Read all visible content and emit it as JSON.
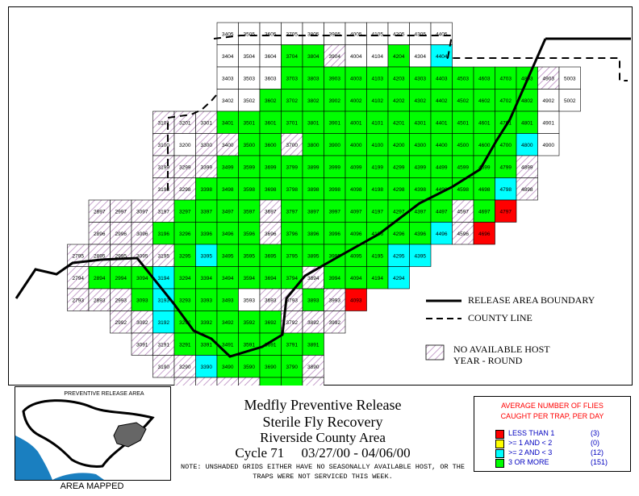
{
  "titles": {
    "line1": "Medfly Preventive Release",
    "line2": "Sterile Fly Recovery",
    "line3": "Riverside County Area",
    "line4": "Cycle 71     03/27/00 - 04/06/00"
  },
  "note": "NOTE: UNSHADED GRIDS EITHER HAVE NO SEASONALLY AVAILABLE HOST, OR THE TRAPS WERE NOT SERVICED THIS WEEK.",
  "inset": {
    "label": "PREVENTIVE RELEASE AREA",
    "caption": "AREA MAPPED"
  },
  "map_key": {
    "release_boundary": "RELEASE AREA BOUNDARY",
    "county_line": "COUNTY LINE",
    "no_host_line1": "NO AVAILABLE HOST",
    "no_host_line2": "YEAR - ROUND"
  },
  "legend": {
    "title_line1": "AVERAGE NUMBER OF FLIES",
    "title_line2": "CAUGHT PER TRAP, PER DAY",
    "items": [
      {
        "label": "LESS THAN 1",
        "count": "(3)",
        "color": "#ff0000"
      },
      {
        "label": ">= 1 AND < 2",
        "count": "(0)",
        "color": "#ffff00"
      },
      {
        "label": ">= 2 AND < 3",
        "count": "(12)",
        "color": "#00ffff"
      },
      {
        "label": "3 OR MORE",
        "count": "(151)",
        "color": "#00ff00"
      }
    ]
  },
  "colors": {
    "green": "#00ff00",
    "cyan": "#00ffff",
    "red": "#ff0000",
    "hatch": "#b98bc0"
  },
  "grid_rows": [
    {
      "id": "05",
      "cells": [
        [
          "3405",
          "w"
        ],
        [
          "3505",
          "w"
        ],
        [
          "3605",
          "w"
        ],
        [
          "3705",
          "w"
        ],
        [
          "3805",
          "w"
        ],
        [
          "3905",
          "w"
        ],
        [
          "4005",
          "w"
        ],
        [
          "4105",
          "w"
        ],
        [
          "4205",
          "w"
        ],
        [
          "4305",
          "w"
        ],
        [
          "4405",
          "w"
        ]
      ]
    },
    {
      "id": "04",
      "cells": [
        [
          "3404",
          "w"
        ],
        [
          "3504",
          "w"
        ],
        [
          "3604",
          "w"
        ],
        [
          "3704",
          "g"
        ],
        [
          "3804",
          "g"
        ],
        [
          "3904",
          "h"
        ],
        [
          "4004",
          "w"
        ],
        [
          "4104",
          "w"
        ],
        [
          "4204",
          "g"
        ],
        [
          "4304",
          "w"
        ],
        [
          "4404",
          "c"
        ]
      ]
    },
    {
      "id": "03",
      "cells": [
        [
          "3403",
          "w"
        ],
        [
          "3503",
          "w"
        ],
        [
          "3603",
          "w"
        ],
        [
          "3703",
          "g"
        ],
        [
          "3803",
          "g"
        ],
        [
          "3903",
          "g"
        ],
        [
          "4003",
          "g"
        ],
        [
          "4103",
          "g"
        ],
        [
          "4203",
          "g"
        ],
        [
          "4303",
          "g"
        ],
        [
          "4403",
          "g"
        ],
        [
          "4503",
          "g"
        ],
        [
          "4603",
          "g"
        ],
        [
          "4703",
          "g"
        ],
        [
          "4803",
          "g"
        ],
        [
          "4903",
          "h"
        ],
        [
          "5003",
          "w"
        ]
      ]
    },
    {
      "id": "02",
      "cells": [
        [
          "3402",
          "w"
        ],
        [
          "3502",
          "w"
        ],
        [
          "3602",
          "g"
        ],
        [
          "3702",
          "g"
        ],
        [
          "3802",
          "g"
        ],
        [
          "3902",
          "g"
        ],
        [
          "4002",
          "g"
        ],
        [
          "4102",
          "g"
        ],
        [
          "4202",
          "g"
        ],
        [
          "4302",
          "g"
        ],
        [
          "4402",
          "g"
        ],
        [
          "4502",
          "g"
        ],
        [
          "4602",
          "g"
        ],
        [
          "4702",
          "g"
        ],
        [
          "4802",
          "g"
        ],
        [
          "4902",
          "w"
        ],
        [
          "5002",
          "w"
        ]
      ]
    },
    {
      "id": "01",
      "cells": [
        [
          "3101",
          "h"
        ],
        [
          "3201",
          "h"
        ],
        [
          "3301",
          "h"
        ],
        [
          "3401",
          "g"
        ],
        [
          "3501",
          "g"
        ],
        [
          "3601",
          "g"
        ],
        [
          "3701",
          "g"
        ],
        [
          "3801",
          "g"
        ],
        [
          "3901",
          "g"
        ],
        [
          "4001",
          "g"
        ],
        [
          "4101",
          "g"
        ],
        [
          "4201",
          "g"
        ],
        [
          "4301",
          "g"
        ],
        [
          "4401",
          "g"
        ],
        [
          "4501",
          "g"
        ],
        [
          "4601",
          "g"
        ],
        [
          "4701",
          "g"
        ],
        [
          "4801",
          "g"
        ],
        [
          "4901",
          "w"
        ]
      ]
    },
    {
      "id": "00",
      "cells": [
        [
          "3100",
          "h"
        ],
        [
          "3200",
          "w"
        ],
        [
          "3300",
          "h"
        ],
        [
          "3400",
          "h"
        ],
        [
          "3500",
          "g"
        ],
        [
          "3600",
          "g"
        ],
        [
          "3700",
          "h"
        ],
        [
          "3800",
          "g"
        ],
        [
          "3900",
          "g"
        ],
        [
          "4000",
          "g"
        ],
        [
          "4100",
          "g"
        ],
        [
          "4200",
          "g"
        ],
        [
          "4300",
          "g"
        ],
        [
          "4400",
          "g"
        ],
        [
          "4500",
          "g"
        ],
        [
          "4600",
          "g"
        ],
        [
          "4700",
          "g"
        ],
        [
          "4800",
          "c"
        ],
        [
          "4900",
          "w"
        ]
      ]
    },
    {
      "id": "99",
      "cells": [
        [
          "3199",
          "h"
        ],
        [
          "3299",
          "h"
        ],
        [
          "3399",
          "h"
        ],
        [
          "3499",
          "g"
        ],
        [
          "3599",
          "g"
        ],
        [
          "3699",
          "g"
        ],
        [
          "3799",
          "g"
        ],
        [
          "3899",
          "g"
        ],
        [
          "3999",
          "g"
        ],
        [
          "4099",
          "g"
        ],
        [
          "4199",
          "g"
        ],
        [
          "4299",
          "g"
        ],
        [
          "4399",
          "g"
        ],
        [
          "4499",
          "g"
        ],
        [
          "4599",
          "g"
        ],
        [
          "4699",
          "g"
        ],
        [
          "4799",
          "g"
        ],
        [
          "4899",
          "h"
        ]
      ]
    },
    {
      "id": "98",
      "cells": [
        [
          "3198",
          "h"
        ],
        [
          "3298",
          "h"
        ],
        [
          "3398",
          "g"
        ],
        [
          "3498",
          "g"
        ],
        [
          "3598",
          "g"
        ],
        [
          "3698",
          "g"
        ],
        [
          "3798",
          "g"
        ],
        [
          "3898",
          "g"
        ],
        [
          "3998",
          "g"
        ],
        [
          "4098",
          "g"
        ],
        [
          "4198",
          "g"
        ],
        [
          "4298",
          "g"
        ],
        [
          "4398",
          "g"
        ],
        [
          "4498",
          "g"
        ],
        [
          "4598",
          "g"
        ],
        [
          "4698",
          "g"
        ],
        [
          "4798",
          "c"
        ],
        [
          "4898",
          "h"
        ]
      ]
    },
    {
      "id": "97",
      "cells": [
        [
          "2897",
          "h"
        ],
        [
          "2997",
          "h"
        ],
        [
          "3097",
          "h"
        ],
        [
          "3197",
          "h"
        ],
        [
          "3297",
          "g"
        ],
        [
          "3397",
          "g"
        ],
        [
          "3497",
          "g"
        ],
        [
          "3597",
          "g"
        ],
        [
          "3697",
          "h"
        ],
        [
          "3797",
          "g"
        ],
        [
          "3897",
          "g"
        ],
        [
          "3997",
          "g"
        ],
        [
          "4097",
          "g"
        ],
        [
          "4197",
          "g"
        ],
        [
          "4297",
          "g"
        ],
        [
          "4397",
          "g"
        ],
        [
          "4497",
          "g"
        ],
        [
          "4597",
          "h"
        ],
        [
          "4697",
          "g"
        ],
        [
          "4797",
          "r"
        ]
      ]
    },
    {
      "id": "96",
      "cells": [
        [
          "2896",
          "h"
        ],
        [
          "2996",
          "h"
        ],
        [
          "3096",
          "h"
        ],
        [
          "3196",
          "g"
        ],
        [
          "3296",
          "g"
        ],
        [
          "3396",
          "g"
        ],
        [
          "3496",
          "g"
        ],
        [
          "3596",
          "g"
        ],
        [
          "3696",
          "h"
        ],
        [
          "3796",
          "g"
        ],
        [
          "3896",
          "g"
        ],
        [
          "3996",
          "g"
        ],
        [
          "4096",
          "g"
        ],
        [
          "4196",
          "g"
        ],
        [
          "4296",
          "g"
        ],
        [
          "4396",
          "g"
        ],
        [
          "4496",
          "c"
        ],
        [
          "4596",
          "h"
        ],
        [
          "4696",
          "r"
        ]
      ]
    },
    {
      "id": "95",
      "cells": [
        [
          "2795",
          "h"
        ],
        [
          "2895",
          "h"
        ],
        [
          "2995",
          "h"
        ],
        [
          "3095",
          "h"
        ],
        [
          "3195",
          "h"
        ],
        [
          "3295",
          "g"
        ],
        [
          "3395",
          "c"
        ],
        [
          "3495",
          "g"
        ],
        [
          "3595",
          "g"
        ],
        [
          "3695",
          "g"
        ],
        [
          "3795",
          "g"
        ],
        [
          "3895",
          "g"
        ],
        [
          "3995",
          "g"
        ],
        [
          "4095",
          "g"
        ],
        [
          "4195",
          "g"
        ],
        [
          "4295",
          "c"
        ],
        [
          "4395",
          "c"
        ]
      ]
    },
    {
      "id": "94",
      "cells": [
        [
          "2794",
          "h"
        ],
        [
          "2894",
          "g"
        ],
        [
          "2994",
          "g"
        ],
        [
          "3094",
          "g"
        ],
        [
          "3194",
          "c"
        ],
        [
          "3294",
          "g"
        ],
        [
          "3394",
          "g"
        ],
        [
          "3494",
          "g"
        ],
        [
          "3594",
          "g"
        ],
        [
          "3694",
          "g"
        ],
        [
          "3794",
          "g"
        ],
        [
          "3894",
          "h"
        ],
        [
          "3994",
          "g"
        ],
        [
          "4094",
          "g"
        ],
        [
          "4194",
          "g"
        ],
        [
          "4294",
          "c"
        ]
      ]
    },
    {
      "id": "93",
      "cells": [
        [
          "2793",
          "h"
        ],
        [
          "2893",
          "h"
        ],
        [
          "2993",
          "h"
        ],
        [
          "3093",
          "g"
        ],
        [
          "3193",
          "c"
        ],
        [
          "3293",
          "g"
        ],
        [
          "3393",
          "g"
        ],
        [
          "3493",
          "g"
        ],
        [
          "3593",
          "w"
        ],
        [
          "3693",
          "h"
        ],
        [
          "3793",
          "h"
        ],
        [
          "3893",
          "g"
        ],
        [
          "3993",
          "h"
        ],
        [
          "4093",
          "r"
        ]
      ]
    },
    {
      "id": "92",
      "cells": [
        [
          "2992",
          "h"
        ],
        [
          "3092",
          "h"
        ],
        [
          "3192",
          "c"
        ],
        [
          "3292",
          "g"
        ],
        [
          "3392",
          "g"
        ],
        [
          "3492",
          "g"
        ],
        [
          "3592",
          "g"
        ],
        [
          "3692",
          "g"
        ],
        [
          "3792",
          "h"
        ],
        [
          "3892",
          "h"
        ],
        [
          "3992",
          "h"
        ]
      ]
    },
    {
      "id": "91",
      "cells": [
        [
          "3091",
          "h"
        ],
        [
          "3191",
          "h"
        ],
        [
          "3291",
          "g"
        ],
        [
          "3391",
          "g"
        ],
        [
          "3491",
          "g"
        ],
        [
          "3591",
          "g"
        ],
        [
          "3691",
          "g"
        ],
        [
          "3791",
          "g"
        ],
        [
          "3891",
          "g"
        ]
      ]
    },
    {
      "id": "90",
      "cells": [
        [
          "3190",
          "h"
        ],
        [
          "3290",
          "h"
        ],
        [
          "3390",
          "c"
        ],
        [
          "3490",
          "g"
        ],
        [
          "3590",
          "g"
        ],
        [
          "3690",
          "g"
        ],
        [
          "3790",
          "g"
        ],
        [
          "3890",
          "h"
        ]
      ]
    },
    {
      "id": "89",
      "cells": [
        [
          "3289",
          "h"
        ],
        [
          "3389",
          "h"
        ],
        [
          "3489",
          "h"
        ],
        [
          "3589",
          "h"
        ],
        [
          "3689",
          "g"
        ],
        [
          "3789",
          "g"
        ],
        [
          "3889",
          "h"
        ]
      ]
    }
  ]
}
